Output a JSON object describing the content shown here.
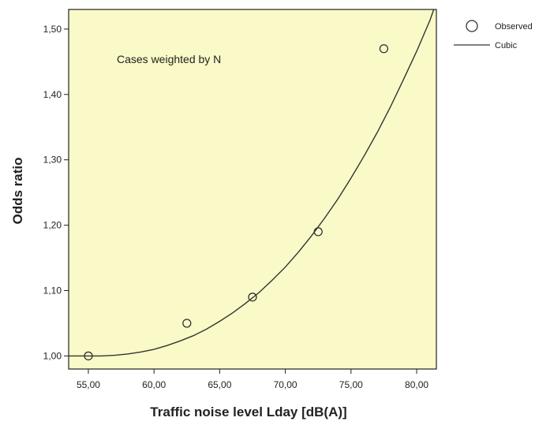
{
  "chart_data": {
    "type": "scatter",
    "annotation": "Cases weighted by N",
    "xlabel": "Traffic noise level Lday [dB(A)]",
    "ylabel": "Odds ratio",
    "xlim": [
      53.5,
      81.5
    ],
    "ylim": [
      0.98,
      1.53
    ],
    "x_ticks": [
      55,
      60,
      65,
      70,
      75,
      80
    ],
    "x_tick_labels": [
      "55,00",
      "60,00",
      "65,00",
      "70,00",
      "75,00",
      "80,00"
    ],
    "y_ticks": [
      1.0,
      1.1,
      1.2,
      1.3,
      1.4,
      1.5
    ],
    "y_tick_labels": [
      "1,00",
      "1,10",
      "1,20",
      "1,30",
      "1,40",
      "1,50"
    ],
    "legend_position": "top-right",
    "grid": false,
    "colors": {
      "plot_background": "#fafac8",
      "marks": "#333333"
    },
    "series": [
      {
        "name": "Observed",
        "kind": "points",
        "x": [
          55.0,
          62.5,
          67.5,
          72.5,
          77.5
        ],
        "y": [
          1.0,
          1.05,
          1.09,
          1.19,
          1.47
        ]
      },
      {
        "name": "Cubic",
        "kind": "line",
        "x": [
          53.5,
          55,
          56,
          57,
          58,
          59,
          60,
          61,
          62,
          63,
          64,
          65,
          66,
          67,
          68,
          69,
          70,
          71,
          72,
          73,
          74,
          75,
          76,
          77,
          78,
          79,
          80,
          81,
          81.3
        ],
        "y": [
          1.0,
          1.0,
          1.0,
          1.001,
          1.003,
          1.006,
          1.01,
          1.016,
          1.023,
          1.031,
          1.041,
          1.053,
          1.066,
          1.081,
          1.097,
          1.116,
          1.136,
          1.159,
          1.184,
          1.211,
          1.24,
          1.272,
          1.306,
          1.342,
          1.381,
          1.423,
          1.466,
          1.513,
          1.53
        ]
      }
    ]
  }
}
